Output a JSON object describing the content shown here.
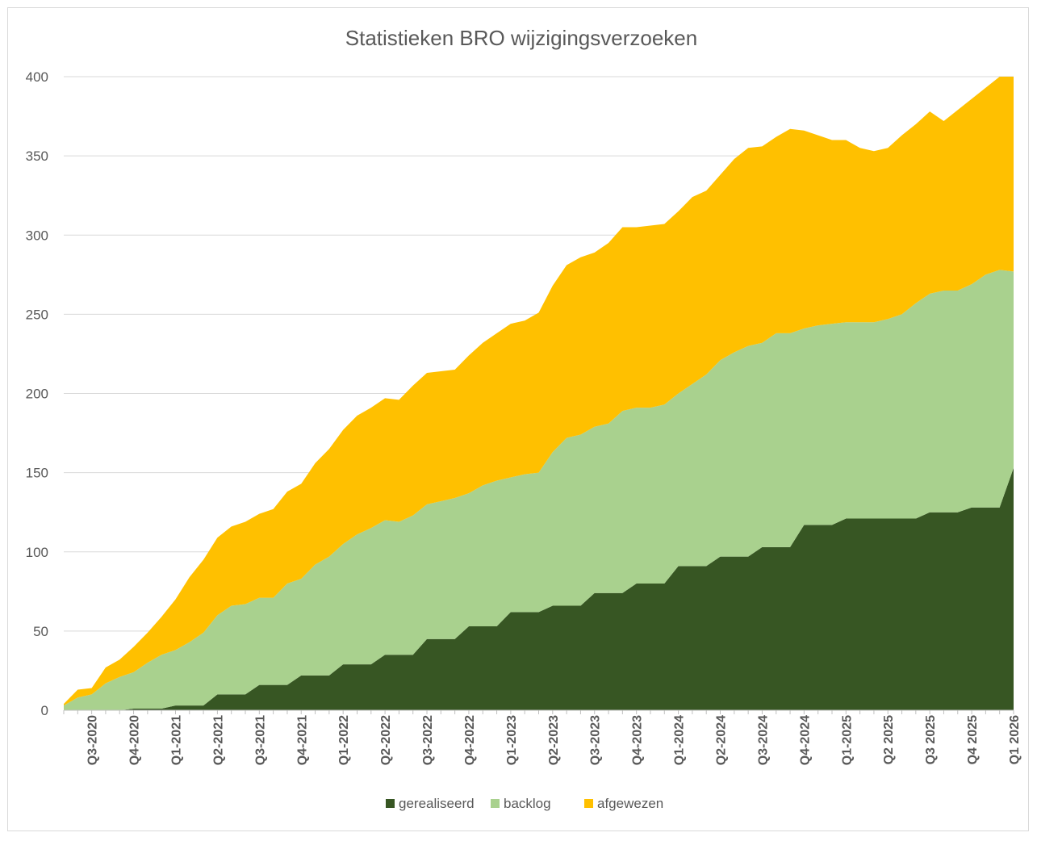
{
  "chart_data": {
    "type": "area",
    "stacked": true,
    "title": "Statistieken BRO wijzigingsverzoeken",
    "xlabel": "",
    "ylabel": "",
    "ylim": [
      0,
      400
    ],
    "yticks": [
      0,
      50,
      100,
      150,
      200,
      250,
      300,
      350,
      400
    ],
    "grid": true,
    "legend_position": "bottom",
    "x_tick_labels": [
      "Q3-2020",
      "Q4-2020",
      "Q1-2021",
      "Q2-2021",
      "Q3-2021",
      "Q4-2021",
      "Q1-2022",
      "Q2-2022",
      "Q3-2022",
      "Q4-2022",
      "Q1-2023",
      "Q2-2023",
      "Q3-2023",
      "Q4-2023",
      "Q1-2024",
      "Q2-2024",
      "Q3-2024",
      "Q4-2024",
      "Q1-2025",
      "Q2 2025",
      "Q3 2025",
      "Q4 2025",
      "Q1 2026"
    ],
    "series": [
      {
        "name": "gerealiseerd",
        "color": "#375623",
        "values": [
          0,
          0,
          0,
          0,
          0,
          1,
          1,
          1,
          3,
          3,
          3,
          10,
          10,
          10,
          16,
          16,
          16,
          22,
          22,
          22,
          29,
          29,
          29,
          35,
          35,
          35,
          45,
          45,
          45,
          53,
          53,
          53,
          62,
          62,
          62,
          66,
          66,
          66,
          74,
          74,
          74,
          80,
          80,
          80,
          91,
          91,
          91,
          97,
          97,
          97,
          103,
          103,
          103,
          117,
          117,
          117,
          121,
          121,
          121,
          121,
          121,
          121,
          125,
          125,
          125,
          128,
          128,
          128,
          153
        ]
      },
      {
        "name": "backlog",
        "color": "#a9d18e",
        "values": [
          3,
          8,
          10,
          17,
          21,
          23,
          29,
          34,
          35,
          40,
          46,
          50,
          56,
          57,
          55,
          55,
          64,
          61,
          70,
          75,
          76,
          82,
          86,
          85,
          84,
          88,
          85,
          87,
          89,
          84,
          89,
          92,
          85,
          87,
          88,
          97,
          106,
          108,
          105,
          107,
          115,
          111,
          111,
          113,
          109,
          115,
          121,
          124,
          129,
          133,
          129,
          135,
          135,
          124,
          126,
          127,
          124,
          124,
          124,
          126,
          129,
          136,
          138,
          140,
          140,
          141,
          147,
          150,
          124
        ]
      },
      {
        "name": "afgewezen",
        "color": "#ffc000",
        "values": [
          1,
          5,
          4,
          10,
          11,
          16,
          19,
          24,
          32,
          41,
          46,
          49,
          50,
          52,
          53,
          56,
          58,
          60,
          64,
          68,
          72,
          75,
          76,
          77,
          77,
          82,
          83,
          82,
          81,
          87,
          90,
          93,
          97,
          97,
          101,
          105,
          109,
          112,
          110,
          114,
          116,
          114,
          115,
          114,
          115,
          118,
          116,
          117,
          122,
          125,
          124,
          124,
          129,
          125,
          120,
          116,
          115,
          110,
          108,
          108,
          113,
          113,
          115,
          107,
          114,
          117,
          118,
          122,
          123
        ]
      }
    ]
  }
}
